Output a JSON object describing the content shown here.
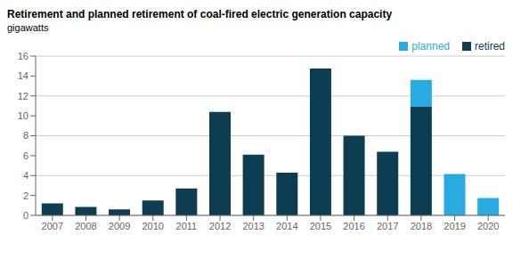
{
  "chart_data": {
    "type": "bar",
    "title": "Retirement and planned retirement of coal-fired electric generation capacity",
    "subtitle": "gigawatts",
    "categories": [
      "2007",
      "2008",
      "2009",
      "2010",
      "2011",
      "2012",
      "2013",
      "2014",
      "2015",
      "2016",
      "2017",
      "2018",
      "2019",
      "2020"
    ],
    "series": [
      {
        "name": "retired",
        "color": "#0d3d52",
        "values": [
          1.2,
          0.85,
          0.6,
          1.5,
          2.7,
          10.4,
          6.1,
          4.3,
          14.75,
          8.0,
          6.4,
          10.9,
          0.0,
          0.0
        ]
      },
      {
        "name": "planned",
        "color": "#29abe2",
        "values": [
          0.0,
          0.0,
          0.0,
          0.0,
          0.0,
          0.0,
          0.0,
          0.0,
          0.0,
          0.0,
          0.0,
          2.7,
          4.15,
          1.75
        ]
      }
    ],
    "stacked": true,
    "ylim": [
      0,
      16
    ],
    "yticks": [
      0,
      2,
      4,
      6,
      8,
      10,
      12,
      14,
      16
    ],
    "grid": true,
    "legend": "upper right"
  }
}
